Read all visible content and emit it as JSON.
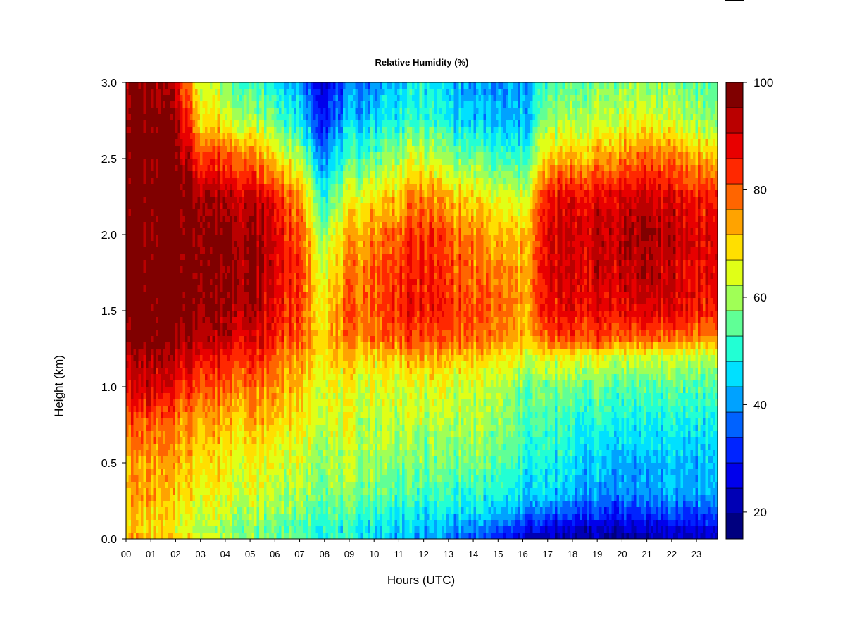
{
  "chart_data": {
    "type": "heatmap",
    "title": "Relative Humidity (%)",
    "xlabel": "Hours (UTC)",
    "ylabel": "Height (km)",
    "xlim": [
      0,
      23.85
    ],
    "ylim": [
      0,
      3.0
    ],
    "x_tick_labels": [
      "00",
      "01",
      "02",
      "03",
      "04",
      "05",
      "06",
      "07",
      "08",
      "09",
      "10",
      "11",
      "12",
      "13",
      "14",
      "15",
      "16",
      "17",
      "18",
      "19",
      "20",
      "21",
      "22",
      "23"
    ],
    "y_ticks": [
      0.0,
      0.5,
      1.0,
      1.5,
      2.0,
      2.5,
      3.0
    ],
    "y_tick_labels": [
      "0.0",
      "0.5",
      "1.0",
      "1.5",
      "2.0",
      "2.5",
      "3.0"
    ],
    "colorbar": {
      "min": 15,
      "max": 100,
      "ticks": [
        20,
        40,
        60,
        80,
        100
      ],
      "tick_labels": [
        "20",
        "40",
        "60",
        "80",
        "100"
      ],
      "level_colors": [
        "#00007F",
        "#0000B5",
        "#0000EC",
        "#0024FF",
        "#0062FF",
        "#00A2FF",
        "#00E0FF",
        "#22FFD4",
        "#60FF96",
        "#A0FF56",
        "#E0FF17",
        "#FFDF00",
        "#FFA300",
        "#FF6500",
        "#FF2800",
        "#E80000",
        "#BA0000",
        "#800000"
      ]
    },
    "grid_hours": [
      0,
      1,
      2,
      3,
      4,
      5,
      6,
      7,
      8,
      9,
      10,
      11,
      12,
      13,
      14,
      15,
      16,
      17,
      18,
      19,
      20,
      21,
      22,
      23.85
    ],
    "grid_heights_km": [
      0.0,
      0.05,
      0.15,
      0.3,
      0.5,
      0.75,
      1.0,
      1.2,
      1.3,
      1.5,
      1.75,
      2.0,
      2.25,
      2.5,
      2.75,
      3.0
    ],
    "rh_values": [
      [
        74,
        72,
        72,
        68,
        64,
        60,
        58,
        56,
        52,
        50,
        48,
        44,
        40,
        38,
        34,
        30,
        24,
        20,
        20,
        20,
        20,
        21,
        22,
        24
      ],
      [
        72,
        68,
        66,
        62,
        58,
        56,
        54,
        52,
        50,
        48,
        46,
        44,
        42,
        40,
        38,
        34,
        28,
        24,
        23,
        22,
        22,
        23,
        24,
        26
      ],
      [
        72,
        70,
        66,
        64,
        62,
        60,
        58,
        56,
        54,
        52,
        50,
        48,
        46,
        46,
        44,
        42,
        38,
        34,
        32,
        31,
        30,
        31,
        32,
        34
      ],
      [
        74,
        74,
        70,
        68,
        66,
        64,
        62,
        60,
        58,
        56,
        56,
        54,
        52,
        52,
        50,
        48,
        46,
        44,
        42,
        40,
        40,
        40,
        41,
        42
      ],
      [
        76,
        72,
        74,
        70,
        68,
        66,
        64,
        62,
        60,
        60,
        60,
        58,
        56,
        56,
        56,
        54,
        50,
        48,
        46,
        44,
        42,
        42,
        43,
        44
      ],
      [
        80,
        80,
        76,
        74,
        72,
        72,
        70,
        66,
        64,
        62,
        62,
        62,
        60,
        60,
        60,
        58,
        54,
        52,
        50,
        50,
        48,
        48,
        48,
        48
      ],
      [
        90,
        90,
        86,
        82,
        80,
        78,
        76,
        70,
        66,
        64,
        64,
        64,
        64,
        64,
        62,
        60,
        56,
        56,
        56,
        56,
        54,
        54,
        54,
        54
      ],
      [
        94,
        94,
        92,
        90,
        86,
        84,
        80,
        74,
        70,
        70,
        70,
        72,
        74,
        72,
        70,
        68,
        64,
        66,
        66,
        66,
        64,
        64,
        62,
        62
      ],
      [
        98,
        98,
        96,
        94,
        92,
        90,
        84,
        78,
        72,
        76,
        78,
        80,
        80,
        80,
        78,
        76,
        72,
        78,
        80,
        80,
        78,
        78,
        76,
        74
      ],
      [
        100,
        100,
        100,
        98,
        96,
        94,
        88,
        80,
        70,
        78,
        80,
        84,
        86,
        84,
        80,
        78,
        74,
        86,
        88,
        88,
        88,
        90,
        88,
        86
      ],
      [
        100,
        100,
        100,
        98,
        98,
        96,
        90,
        82,
        66,
        76,
        80,
        84,
        86,
        82,
        78,
        76,
        72,
        88,
        90,
        90,
        92,
        94,
        90,
        88
      ],
      [
        100,
        100,
        100,
        98,
        98,
        96,
        90,
        80,
        60,
        72,
        76,
        80,
        84,
        80,
        76,
        72,
        70,
        88,
        90,
        92,
        94,
        96,
        92,
        88
      ],
      [
        100,
        100,
        100,
        96,
        94,
        92,
        86,
        74,
        52,
        64,
        68,
        72,
        76,
        72,
        68,
        64,
        62,
        86,
        88,
        88,
        90,
        92,
        88,
        84
      ],
      [
        100,
        100,
        100,
        84,
        82,
        78,
        70,
        60,
        40,
        52,
        56,
        60,
        64,
        58,
        56,
        52,
        50,
        70,
        72,
        74,
        76,
        80,
        76,
        72
      ],
      [
        100,
        100,
        96,
        70,
        66,
        60,
        56,
        46,
        32,
        42,
        46,
        50,
        52,
        48,
        44,
        42,
        42,
        58,
        60,
        62,
        64,
        66,
        62,
        58
      ],
      [
        96,
        96,
        90,
        66,
        58,
        52,
        48,
        40,
        26,
        36,
        40,
        44,
        48,
        44,
        40,
        38,
        40,
        52,
        54,
        56,
        58,
        58,
        56,
        54
      ]
    ]
  }
}
